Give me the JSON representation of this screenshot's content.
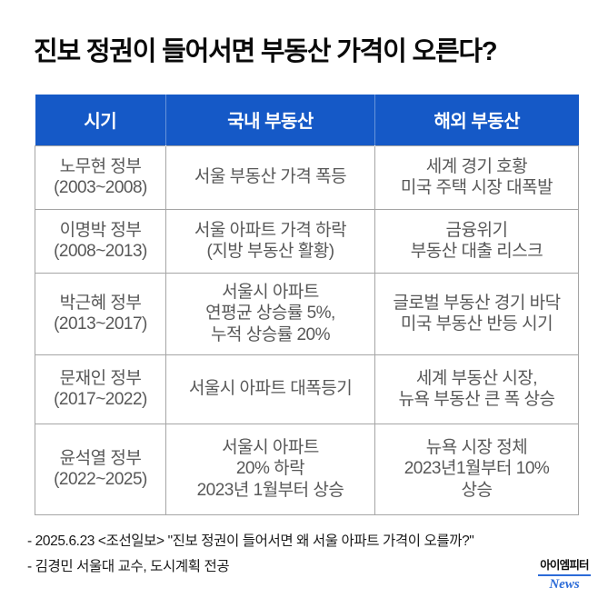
{
  "title": "진보 정권이 들어서면 부동산 가격이 오른다?",
  "chart_data": {
    "type": "table",
    "title": "진보 정권이 들어서면 부동산 가격이 오른다?",
    "columns": [
      "시기",
      "국내 부동산",
      "해외 부동산"
    ],
    "rows": [
      [
        "노무현 정부\n(2003~2008)",
        "서울 부동산 가격 폭등",
        "세계 경기 호황\n미국 주택 시장 대폭발"
      ],
      [
        "이명박 정부\n(2008~2013)",
        "서울 아파트 가격 하락\n(지방 부동산 활황)",
        "금융위기\n부동산 대출 리스크"
      ],
      [
        "박근혜 정부\n(2013~2017)",
        "서울시 아파트\n연평균 상승률 5%,\n누적 상승률 20%",
        "글로벌 부동산 경기 바닥\n미국 부동산 반등 시기"
      ],
      [
        "문재인 정부\n(2017~2022)",
        "서울시 아파트 대폭등기",
        "세계 부동산 시장,\n뉴욕 부동산 큰 폭 상승"
      ],
      [
        "윤석열 정부\n(2022~2025)",
        "서울시 아파트\n20% 하락\n2023년 1월부터 상승",
        "뉴욕 시장 정체\n2023년1월부터 10%\n상승"
      ]
    ],
    "legend_position": "none",
    "grid": true
  },
  "footnotes": [
    "- 2025.6.23 <조선일보> \"진보 정권이 들어서면 왜 서울 아파트 가격이 오를까?\"",
    "- 김경민 서울대 교수, 도시계획 전공"
  ],
  "logo": {
    "name": "아이엠피터",
    "sub": "News"
  },
  "colors": {
    "header_bg": "#1559c7",
    "header_text": "#ffffff",
    "cell_text": "#585858",
    "border": "#a5a5a5",
    "title_text": "#0a0a0a",
    "logo_accent": "#2b6bd8",
    "background": "#ffffff"
  }
}
